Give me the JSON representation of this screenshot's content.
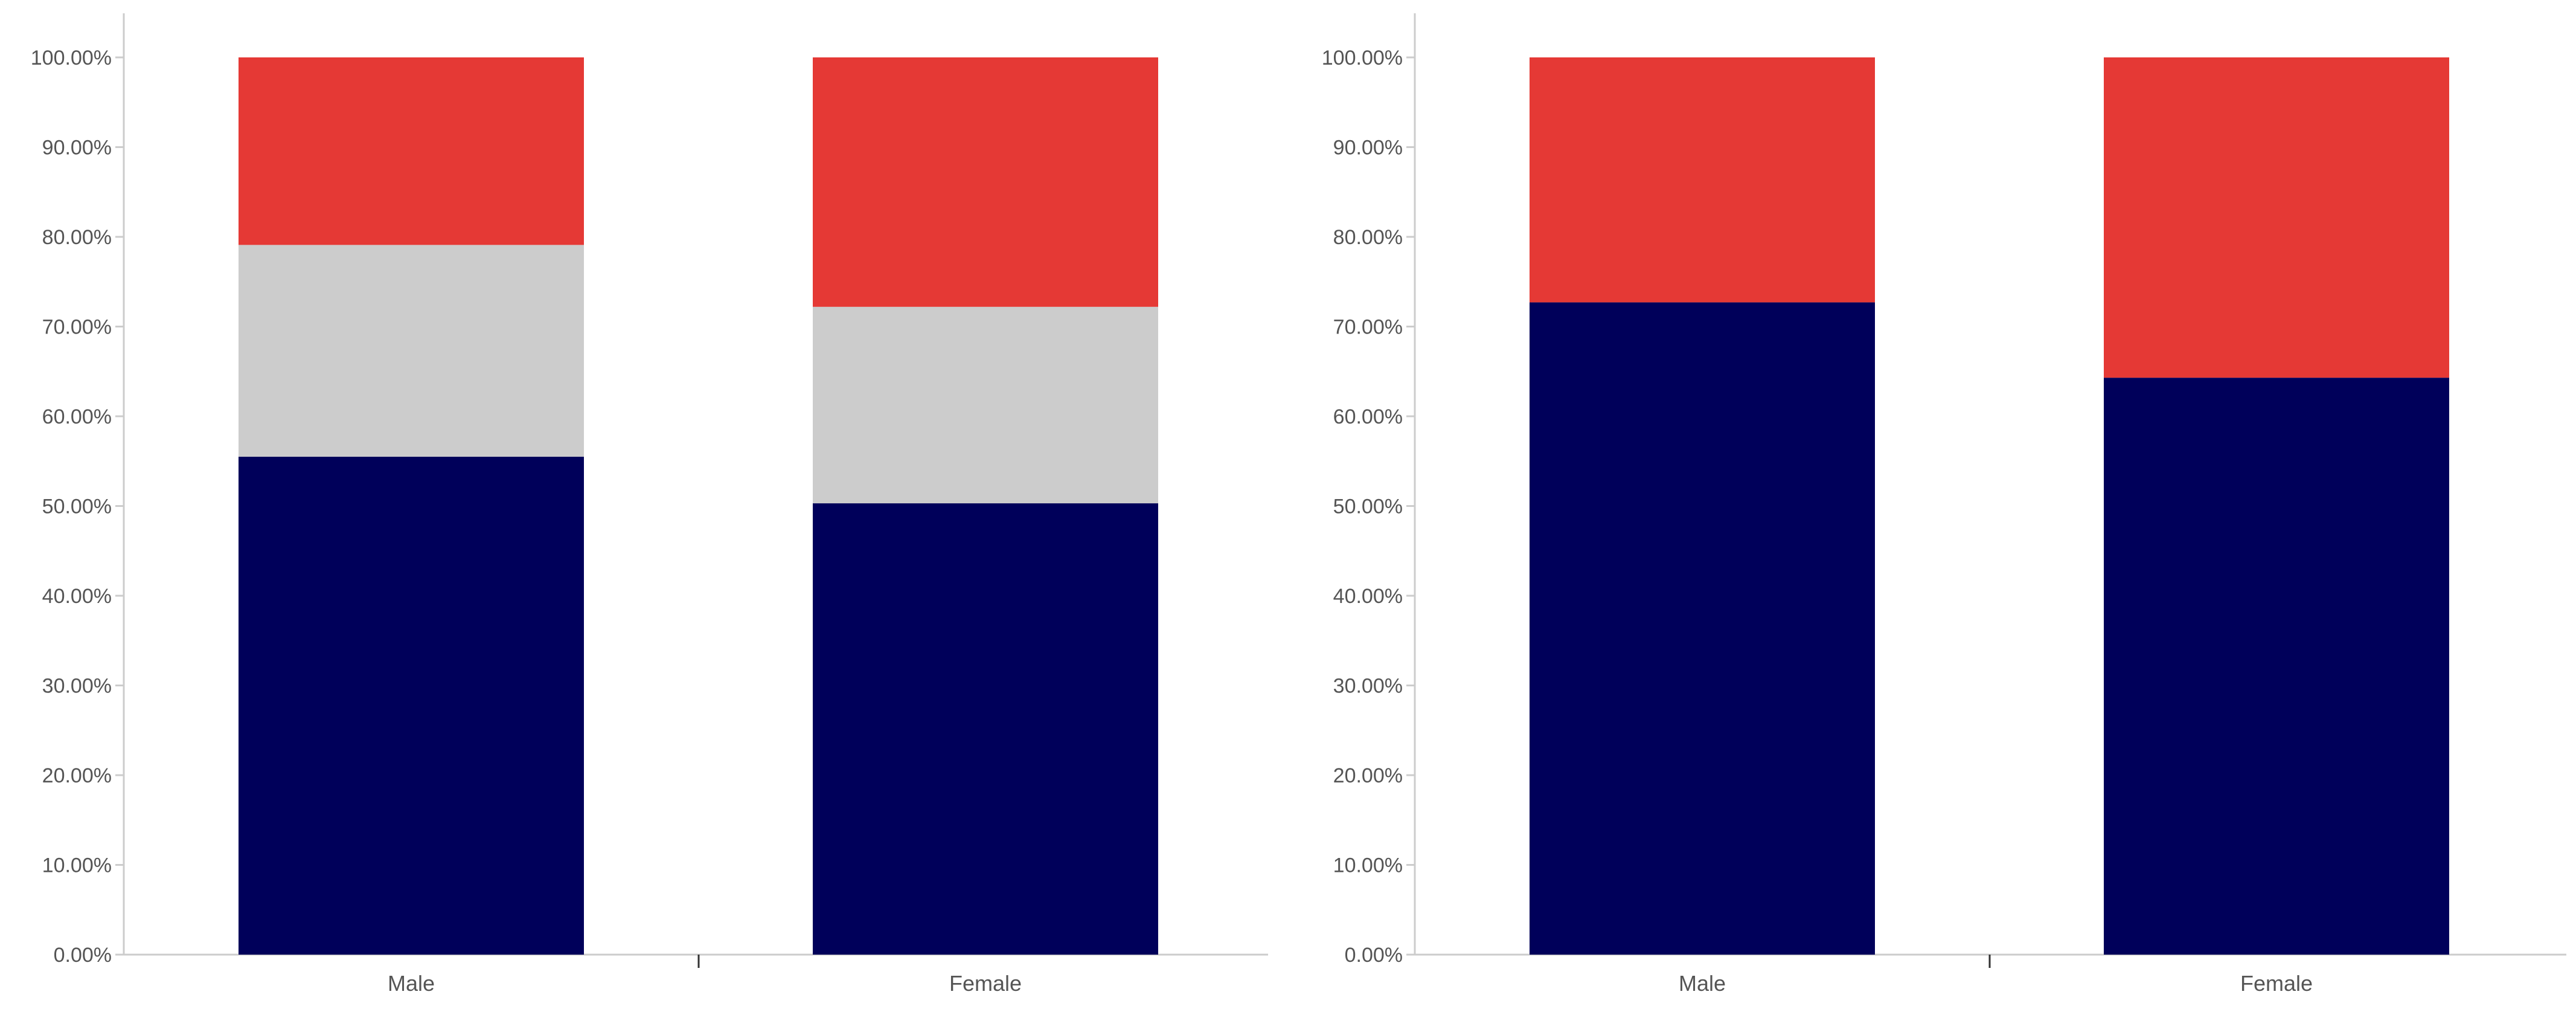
{
  "chart_data": [
    {
      "type": "bar",
      "stacked": true,
      "categories": [
        "Male",
        "Female"
      ],
      "ylim": [
        0,
        100
      ],
      "yticks": [
        0,
        10,
        20,
        30,
        40,
        50,
        60,
        70,
        80,
        90,
        100
      ],
      "ytick_format": "percent_2dp",
      "grid": false,
      "legend": "none",
      "series": [
        {
          "color": "#00005A",
          "values": [
            55.5,
            50.3
          ]
        },
        {
          "color": "#CCCCCC",
          "values": [
            23.6,
            21.9
          ]
        },
        {
          "color": "#E53935",
          "values": [
            20.9,
            27.8
          ]
        }
      ]
    },
    {
      "type": "bar",
      "stacked": true,
      "categories": [
        "Male",
        "Female"
      ],
      "ylim": [
        0,
        100
      ],
      "yticks": [
        0,
        10,
        20,
        30,
        40,
        50,
        60,
        70,
        80,
        90,
        100
      ],
      "ytick_format": "percent_2dp",
      "grid": false,
      "legend": "none",
      "series": [
        {
          "color": "#00005A",
          "values": [
            72.7,
            64.3
          ]
        },
        {
          "color": "#E53935",
          "values": [
            27.3,
            35.7
          ]
        }
      ]
    }
  ],
  "colors": {
    "axis": "#CCCCCC",
    "tick_mark": "#333333",
    "text": "#555555"
  }
}
